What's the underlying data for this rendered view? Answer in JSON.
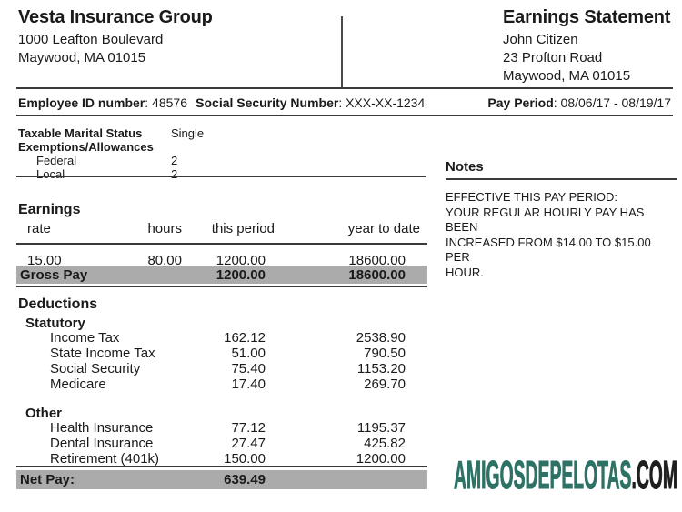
{
  "company": {
    "name": "Vesta Insurance Group",
    "address_line1": "1000 Leafton Boulevard",
    "address_line2": "Maywood, MA 01015"
  },
  "statement": {
    "title": "Earnings Statement",
    "employee_name": "John Citizen",
    "address_line1": "23 Profton Road",
    "address_line2": "Maywood, MA 01015"
  },
  "info_bar": {
    "employee_id_label": "Employee ID number",
    "employee_id_value": ": 48576",
    "ssn_label": "Social Security Number",
    "ssn_value": ": XXX-XX-1234",
    "pay_period_label": "Pay Period",
    "pay_period_value": ": 08/06/17 - 08/19/17"
  },
  "tax_info": {
    "marital_status_label": "Taxable Marital Status",
    "marital_status_value": "Single",
    "exemptions_label": "Exemptions/Allowances",
    "rows": [
      {
        "label": "Federal",
        "value": "2"
      },
      {
        "label": "Local",
        "value": "2"
      }
    ]
  },
  "notes": {
    "title": "Notes",
    "lines": [
      "EFFECTIVE THIS PAY PERIOD:",
      "YOUR REGULAR HOURLY PAY HAS BEEN",
      "INCREASED FROM $14.00 TO $15.00 PER",
      "HOUR."
    ]
  },
  "earnings": {
    "title": "Earnings",
    "headers": [
      "rate",
      "hours",
      "this period",
      "year to date"
    ],
    "rows": [
      [
        "15.00",
        "80.00",
        "1200.00",
        "18600.00"
      ]
    ],
    "gross": {
      "label": "Gross Pay",
      "this_period": "1200.00",
      "year_to_date": "18600.00"
    }
  },
  "deductions": {
    "title": "Deductions",
    "groups": [
      {
        "name": "Statutory",
        "items": [
          {
            "label": "Income Tax",
            "this_period": "162.12",
            "year_to_date": "2538.90"
          },
          {
            "label": "State Income Tax",
            "this_period": "51.00",
            "year_to_date": "790.50"
          },
          {
            "label": "Social Security",
            "this_period": "75.40",
            "year_to_date": "1153.20"
          },
          {
            "label": "Medicare",
            "this_period": "17.40",
            "year_to_date": "269.70"
          }
        ]
      },
      {
        "name": "Other",
        "items": [
          {
            "label": "Health Insurance",
            "this_period": "77.12",
            "year_to_date": "1195.37"
          },
          {
            "label": "Dental Insurance",
            "this_period": "27.47",
            "year_to_date": "425.82"
          },
          {
            "label": "Retirement (401k)",
            "this_period": "150.00",
            "year_to_date": "1200.00"
          }
        ]
      }
    ]
  },
  "net_pay": {
    "label": "Net Pay:",
    "value": "639.49"
  },
  "watermark": {
    "site": "AMIGOSDEPELOTAS",
    "tld": ".COM",
    "site_color": "#2e7266",
    "tld_color": "#1f1f1f"
  },
  "colors": {
    "bar_gray": "#ababab",
    "rule_dark": "#3a3a3a",
    "accent_teal": "#2e7266"
  }
}
